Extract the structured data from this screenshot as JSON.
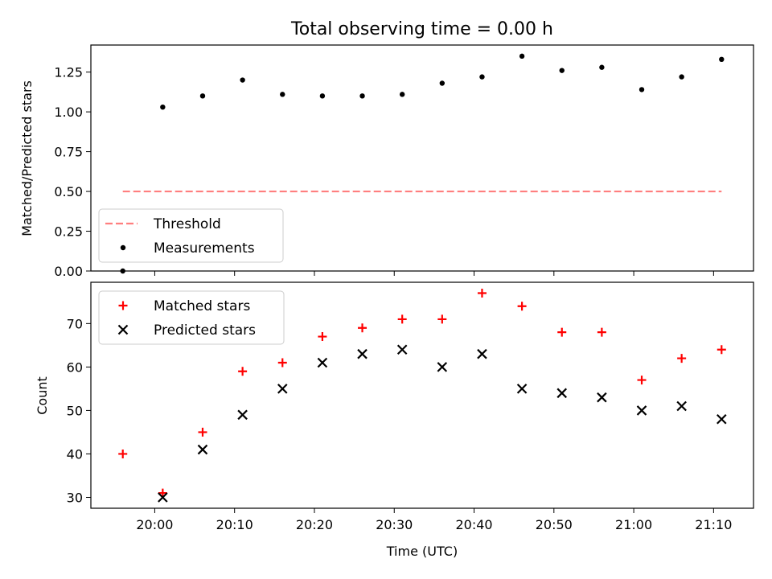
{
  "chart_data": [
    {
      "type": "scatter",
      "title": "Total observing time = 0.00 h",
      "xlabel": "",
      "ylabel": "Matched/Predicted stars",
      "ylim": [
        0.0,
        1.42
      ],
      "yticks": [
        "0.00",
        "0.25",
        "0.50",
        "0.75",
        "1.00",
        "1.25"
      ],
      "yticks_values": [
        0.0,
        0.25,
        0.5,
        0.75,
        1.0,
        1.25
      ],
      "x_axis_range": [
        "19:52",
        "21:15"
      ],
      "legend_position": "lower-left",
      "series": [
        {
          "name": "Threshold",
          "kind": "dashed-line",
          "color": "#ff7f7f",
          "x": [
            "19:56",
            "21:11"
          ],
          "y": [
            0.5,
            0.5
          ]
        },
        {
          "name": "Measurements",
          "kind": "dot",
          "color": "#000000",
          "x": [
            "19:56",
            "20:01",
            "20:06",
            "20:11",
            "20:16",
            "20:21",
            "20:26",
            "20:31",
            "20:36",
            "20:41",
            "20:46",
            "20:51",
            "20:56",
            "21:01",
            "21:06",
            "21:11"
          ],
          "y": [
            0.0,
            1.03,
            1.1,
            1.2,
            1.11,
            1.1,
            1.1,
            1.11,
            1.18,
            1.22,
            1.35,
            1.26,
            1.28,
            1.14,
            1.22,
            1.33
          ]
        }
      ]
    },
    {
      "type": "scatter",
      "title": "",
      "xlabel": "Time (UTC)",
      "ylabel": "Count",
      "ylim": [
        27.5,
        79.5
      ],
      "yticks": [
        "30",
        "40",
        "50",
        "60",
        "70"
      ],
      "yticks_values": [
        30,
        40,
        50,
        60,
        70
      ],
      "x_axis_range": [
        "19:52",
        "21:15"
      ],
      "xticks": [
        "20:00",
        "20:10",
        "20:20",
        "20:30",
        "20:40",
        "20:50",
        "21:00",
        "21:10"
      ],
      "legend_position": "upper-left",
      "series": [
        {
          "name": "Matched stars",
          "kind": "plus",
          "color": "#ff0000",
          "x": [
            "19:56",
            "20:01",
            "20:06",
            "20:11",
            "20:16",
            "20:21",
            "20:26",
            "20:31",
            "20:36",
            "20:41",
            "20:46",
            "20:51",
            "20:56",
            "21:01",
            "21:06",
            "21:11"
          ],
          "y": [
            40,
            31,
            45,
            59,
            61,
            67,
            69,
            71,
            71,
            77,
            74,
            68,
            68,
            57,
            62,
            64
          ]
        },
        {
          "name": "Predicted stars",
          "kind": "x",
          "color": "#000000",
          "x": [
            "19:56",
            "20:01",
            "20:06",
            "20:11",
            "20:16",
            "20:21",
            "20:26",
            "20:31",
            "20:36",
            "20:41",
            "20:46",
            "20:51",
            "20:56",
            "21:01",
            "21:06",
            "21:11"
          ],
          "y": [
            null,
            30,
            41,
            49,
            55,
            61,
            63,
            64,
            60,
            63,
            55,
            54,
            53,
            50,
            51,
            48
          ]
        }
      ]
    }
  ]
}
